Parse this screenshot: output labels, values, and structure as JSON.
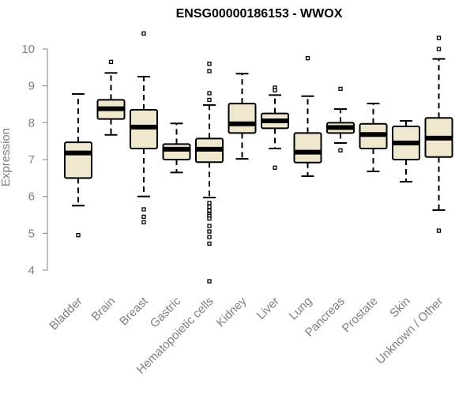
{
  "chart_data": {
    "type": "boxplot",
    "title": "ENSG00000186153 - WWOX",
    "xlabel": "",
    "ylabel": "Expression",
    "ylim": [
      3.6,
      10.6
    ],
    "yticks": [
      4,
      5,
      6,
      7,
      8,
      9,
      10
    ],
    "box_color": "#efe8cf",
    "categories": [
      "Bladder",
      "Brain",
      "Breast",
      "Gastric",
      "Hematopoietic cells",
      "Kidney",
      "Liver",
      "Lung",
      "Pancreas",
      "Prostate",
      "Skin",
      "Unknown / Other"
    ],
    "boxes": [
      {
        "name": "Bladder",
        "whisker_low": 5.75,
        "q1": 6.5,
        "median": 7.18,
        "q3": 7.47,
        "whisker_high": 8.78,
        "outliers": [
          4.95
        ]
      },
      {
        "name": "Brain",
        "whisker_low": 7.67,
        "q1": 8.1,
        "median": 8.38,
        "q3": 8.62,
        "whisker_high": 9.35,
        "outliers": [
          9.65
        ]
      },
      {
        "name": "Breast",
        "whisker_low": 6.0,
        "q1": 7.3,
        "median": 7.88,
        "q3": 8.35,
        "whisker_high": 9.25,
        "outliers": [
          10.42,
          5.65,
          5.45,
          5.3
        ]
      },
      {
        "name": "Gastric",
        "whisker_low": 6.65,
        "q1": 7.0,
        "median": 7.28,
        "q3": 7.42,
        "whisker_high": 7.98,
        "outliers": []
      },
      {
        "name": "Hematopoietic cells",
        "whisker_low": 5.97,
        "q1": 6.93,
        "median": 7.28,
        "q3": 7.57,
        "whisker_high": 8.48,
        "outliers": [
          9.6,
          9.4,
          8.8,
          8.62,
          5.82,
          5.72,
          5.62,
          5.52,
          5.47,
          5.4,
          5.2,
          5.05,
          4.9,
          4.72,
          3.7
        ]
      },
      {
        "name": "Kidney",
        "whisker_low": 7.02,
        "q1": 7.72,
        "median": 7.97,
        "q3": 8.52,
        "whisker_high": 9.33,
        "outliers": []
      },
      {
        "name": "Liver",
        "whisker_low": 7.3,
        "q1": 7.85,
        "median": 8.05,
        "q3": 8.25,
        "whisker_high": 8.75,
        "outliers": [
          8.95,
          8.88,
          6.78
        ]
      },
      {
        "name": "Lung",
        "whisker_low": 6.55,
        "q1": 6.92,
        "median": 7.2,
        "q3": 7.72,
        "whisker_high": 8.72,
        "outliers": [
          9.75
        ]
      },
      {
        "name": "Pancreas",
        "whisker_low": 7.45,
        "q1": 7.72,
        "median": 7.87,
        "q3": 8.0,
        "whisker_high": 8.37,
        "outliers": [
          8.92,
          7.25
        ]
      },
      {
        "name": "Prostate",
        "whisker_low": 6.68,
        "q1": 7.3,
        "median": 7.68,
        "q3": 7.97,
        "whisker_high": 8.52,
        "outliers": []
      },
      {
        "name": "Skin",
        "whisker_low": 6.4,
        "q1": 7.0,
        "median": 7.45,
        "q3": 7.9,
        "whisker_high": 8.05,
        "outliers": []
      },
      {
        "name": "Unknown / Other",
        "whisker_low": 5.63,
        "q1": 7.07,
        "median": 7.58,
        "q3": 8.13,
        "whisker_high": 9.73,
        "outliers": [
          10.3,
          10.0,
          5.07
        ]
      }
    ]
  }
}
